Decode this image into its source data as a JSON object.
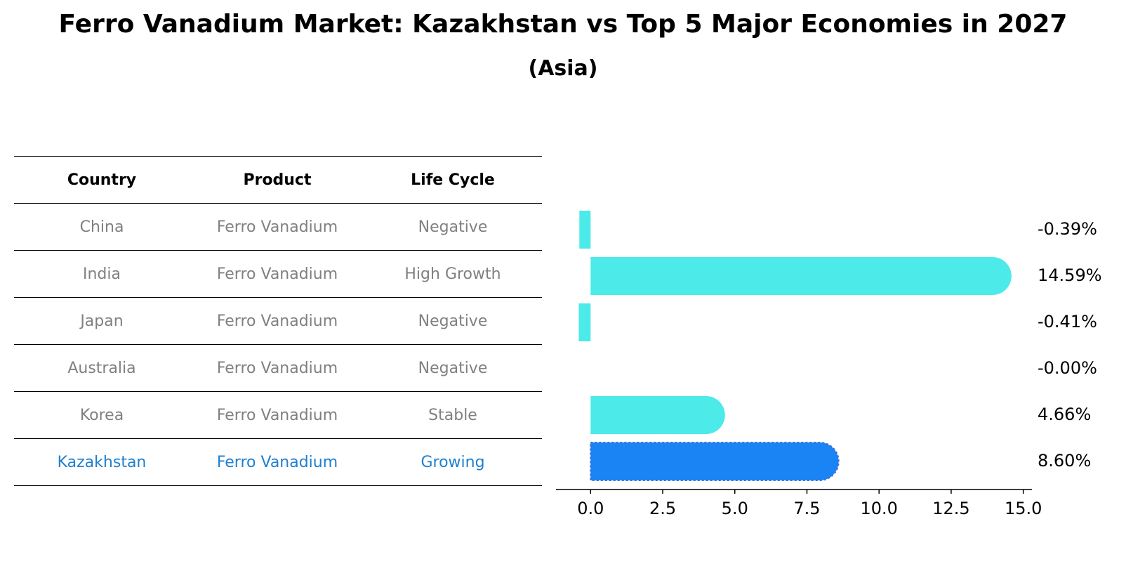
{
  "title": "Ferro Vanadium Market: Kazakhstan vs Top 5 Major Economies in 2027",
  "subtitle": "(Asia)",
  "table": {
    "headers": [
      "Country",
      "Product",
      "Life Cycle"
    ],
    "rows": [
      [
        "China",
        "Ferro Vanadium",
        "Negative"
      ],
      [
        "India",
        "Ferro Vanadium",
        "High Growth"
      ],
      [
        "Japan",
        "Ferro Vanadium",
        "Negative"
      ],
      [
        "Australia",
        "Ferro Vanadium",
        "Negative"
      ],
      [
        "Korea",
        "Ferro Vanadium",
        "Stable"
      ],
      [
        "Kazakhstan",
        "Ferro Vanadium",
        "Growing"
      ]
    ]
  },
  "chart_data": {
    "type": "bar",
    "orientation": "horizontal",
    "categories": [
      "China",
      "India",
      "Japan",
      "Australia",
      "Korea",
      "Kazakhstan"
    ],
    "values": [
      -0.39,
      14.59,
      -0.41,
      -0.0,
      4.66,
      8.6
    ],
    "value_labels": [
      "-0.39%",
      "14.59%",
      "-0.41%",
      "-0.00%",
      "4.66%",
      "8.60%"
    ],
    "xlim": [
      -1.2,
      15.3
    ],
    "xticks": [
      0.0,
      2.5,
      5.0,
      7.5,
      10.0,
      12.5,
      15.0
    ],
    "xtick_labels": [
      "0.0",
      "2.5",
      "5.0",
      "7.5",
      "10.0",
      "12.5",
      "15.0"
    ],
    "highlight": "Kazakhstan",
    "colors": {
      "default": "#4deaea",
      "highlight": "#1a84f5"
    }
  }
}
